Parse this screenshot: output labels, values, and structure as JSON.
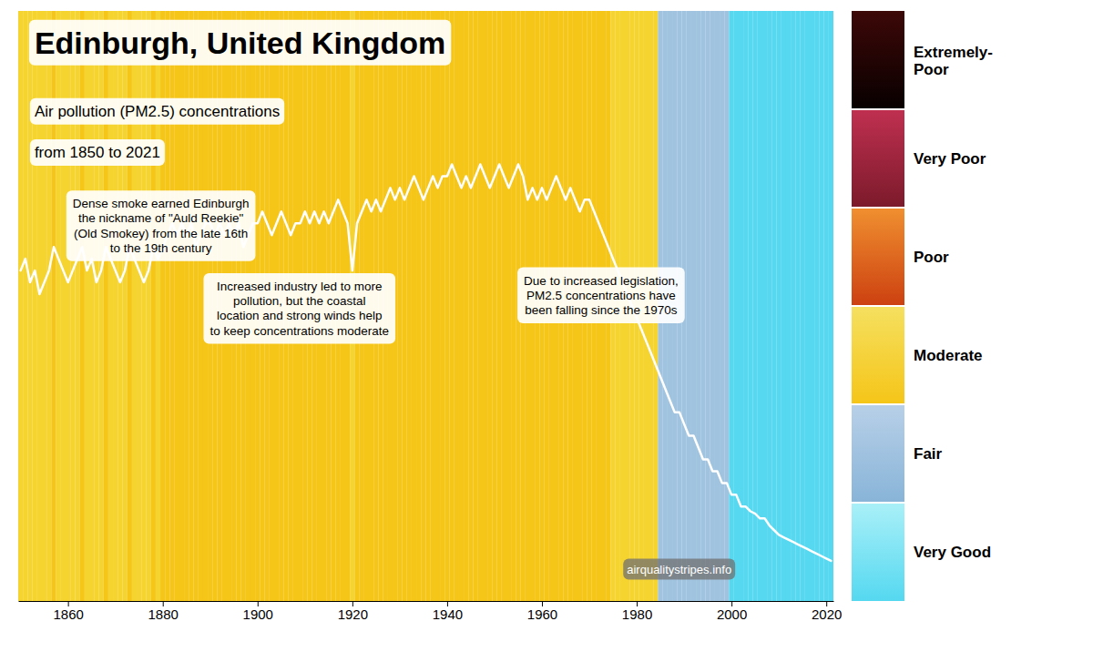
{
  "chart_data": {
    "type": "line",
    "title": "Edinburgh, United Kingdom",
    "subtitle": [
      "Air pollution (PM2.5) concentrations",
      "from 1850 to 2021"
    ],
    "annotations": [
      "Dense smoke earned Edinburgh\nthe nickname of \"Auld Reekie\"\n(Old Smokey) from the late 16th\nto the 19th century",
      "Increased industry led to more\npollution, but the coastal\nlocation and strong winds help\nto keep concentrations moderate",
      "Due to increased legislation,\nPM2.5 concentrations have\nbeen falling since the 1970s"
    ],
    "source": "airqualitystripes.info",
    "x": [
      1850,
      1851,
      1852,
      1853,
      1854,
      1855,
      1856,
      1857,
      1858,
      1859,
      1860,
      1861,
      1862,
      1863,
      1864,
      1865,
      1866,
      1867,
      1868,
      1869,
      1870,
      1871,
      1872,
      1873,
      1874,
      1875,
      1876,
      1877,
      1878,
      1879,
      1880,
      1881,
      1882,
      1883,
      1884,
      1885,
      1886,
      1887,
      1888,
      1889,
      1890,
      1891,
      1892,
      1893,
      1894,
      1895,
      1896,
      1897,
      1898,
      1899,
      1900,
      1901,
      1902,
      1903,
      1904,
      1905,
      1906,
      1907,
      1908,
      1909,
      1910,
      1911,
      1912,
      1913,
      1914,
      1915,
      1916,
      1917,
      1918,
      1919,
      1920,
      1921,
      1922,
      1923,
      1924,
      1925,
      1926,
      1927,
      1928,
      1929,
      1930,
      1931,
      1932,
      1933,
      1934,
      1935,
      1936,
      1937,
      1938,
      1939,
      1940,
      1941,
      1942,
      1943,
      1944,
      1945,
      1946,
      1947,
      1948,
      1949,
      1950,
      1951,
      1952,
      1953,
      1954,
      1955,
      1956,
      1957,
      1958,
      1959,
      1960,
      1961,
      1962,
      1963,
      1964,
      1965,
      1966,
      1967,
      1968,
      1969,
      1970,
      1971,
      1972,
      1973,
      1974,
      1975,
      1976,
      1977,
      1978,
      1979,
      1980,
      1981,
      1982,
      1983,
      1984,
      1985,
      1986,
      1987,
      1988,
      1989,
      1990,
      1991,
      1992,
      1993,
      1994,
      1995,
      1996,
      1997,
      1998,
      1999,
      2000,
      2001,
      2002,
      2003,
      2004,
      2005,
      2006,
      2007,
      2008,
      2009,
      2010,
      2011,
      2012,
      2013,
      2014,
      2015,
      2016,
      2017,
      2018,
      2019,
      2020,
      2021
    ],
    "values": [
      14.0,
      14.5,
      13.5,
      14.0,
      13.0,
      13.5,
      14.0,
      15.0,
      14.5,
      14.0,
      13.5,
      14.0,
      14.5,
      15.0,
      14.0,
      14.5,
      13.5,
      14.0,
      15.0,
      14.5,
      14.0,
      13.5,
      14.0,
      15.0,
      14.5,
      14.0,
      13.5,
      14.0,
      15.0,
      14.5,
      15.0,
      15.5,
      16.0,
      15.5,
      16.0,
      15.5,
      16.0,
      15.0,
      15.5,
      16.0,
      16.0,
      15.5,
      16.0,
      15.5,
      16.0,
      15.5,
      16.0,
      15.0,
      15.5,
      16.0,
      16.0,
      16.5,
      16.0,
      15.5,
      16.0,
      16.5,
      16.0,
      15.5,
      16.0,
      16.0,
      16.5,
      16.0,
      16.5,
      16.0,
      16.5,
      16.0,
      16.5,
      17.0,
      16.5,
      16.0,
      14.0,
      16.0,
      16.5,
      17.0,
      16.5,
      17.0,
      16.5,
      17.0,
      17.5,
      17.0,
      17.5,
      17.0,
      17.5,
      18.0,
      17.5,
      17.0,
      17.5,
      18.0,
      17.5,
      18.0,
      18.0,
      18.5,
      18.0,
      17.5,
      18.0,
      17.5,
      18.0,
      18.5,
      18.0,
      17.5,
      18.0,
      18.5,
      18.0,
      17.5,
      18.0,
      18.5,
      18.0,
      17.0,
      17.5,
      17.0,
      17.5,
      17.0,
      17.5,
      18.0,
      17.5,
      17.0,
      17.5,
      17.0,
      16.5,
      17.0,
      17.0,
      16.5,
      16.0,
      15.5,
      15.0,
      14.5,
      14.0,
      13.5,
      13.0,
      12.5,
      12.0,
      11.5,
      11.0,
      10.5,
      10.0,
      9.5,
      9.0,
      8.5,
      8.0,
      8.0,
      7.5,
      7.0,
      7.0,
      6.5,
      6.0,
      6.0,
      5.5,
      5.5,
      5.0,
      5.0,
      4.5,
      4.5,
      4.0,
      4.0,
      3.8,
      3.7,
      3.5,
      3.5,
      3.2,
      3.0,
      2.8,
      2.7,
      2.6,
      2.5,
      2.4,
      2.3,
      2.2,
      2.1,
      2.0,
      1.9,
      1.8,
      1.7
    ],
    "colors": [
      "#f5d430",
      "#f5d430",
      "#f5d430",
      "#f5d430",
      "#f5d430",
      "#f5d430",
      "#f5d430",
      "#f5c518",
      "#f5d430",
      "#f5d430",
      "#f5d430",
      "#f5d430",
      "#f5d430",
      "#f5c518",
      "#f5d430",
      "#f5d430",
      "#f5d430",
      "#f5d430",
      "#f5c518",
      "#f5d430",
      "#f5d430",
      "#f5d430",
      "#f5d430",
      "#f5c518",
      "#f5d430",
      "#f5d430",
      "#f5d430",
      "#f5d430",
      "#f5c518",
      "#f5d430",
      "#f5c518",
      "#f5c518",
      "#f5c518",
      "#f5c518",
      "#f5c518",
      "#f5c518",
      "#f5c518",
      "#f5c518",
      "#f5c518",
      "#f5c518",
      "#f5c518",
      "#f5c518",
      "#f5c518",
      "#f5c518",
      "#f5c518",
      "#f5c518",
      "#f5c518",
      "#f5c518",
      "#f5c518",
      "#f5c518",
      "#f5c518",
      "#f5c518",
      "#f5c518",
      "#f5c518",
      "#f5c518",
      "#f5c518",
      "#f5c518",
      "#f5c518",
      "#f5c518",
      "#f5c518",
      "#f5c518",
      "#f5c518",
      "#f5c518",
      "#f5c518",
      "#f5c518",
      "#f5c518",
      "#f5c518",
      "#f5c518",
      "#f5c518",
      "#f5c518",
      "#f5d430",
      "#f5c518",
      "#f5c518",
      "#f5c518",
      "#f5c518",
      "#f5c518",
      "#f5c518",
      "#f5c518",
      "#f5c518",
      "#f5c518",
      "#f5c518",
      "#f5c518",
      "#f5c518",
      "#f5c518",
      "#f5c518",
      "#f5c518",
      "#f5c518",
      "#f5c518",
      "#f5c518",
      "#f5c518",
      "#f5c518",
      "#f5c518",
      "#f5c518",
      "#f5c518",
      "#f5c518",
      "#f5c518",
      "#f5c518",
      "#f5c518",
      "#f5c518",
      "#f5c518",
      "#f5c518",
      "#f5c518",
      "#f5c518",
      "#f5c518",
      "#f5c518",
      "#f5c518",
      "#f5c518",
      "#f5c518",
      "#f5c518",
      "#f5c518",
      "#f5c518",
      "#f5c518",
      "#f5c518",
      "#f5c518",
      "#f5c518",
      "#f5c518",
      "#f5c518",
      "#f5c518",
      "#f5c518",
      "#f5c518",
      "#f5c518",
      "#f5c518",
      "#f5c518",
      "#f5c518",
      "#f5c518",
      "#f5d430",
      "#f5d430",
      "#f5d430",
      "#f5d430",
      "#f5d430",
      "#f5d430",
      "#f5d430",
      "#f5d430",
      "#f5d430",
      "#f5d430",
      "#a0c4e0",
      "#a0c4e0",
      "#a0c4e0",
      "#a0c4e0",
      "#a0c4e0",
      "#a0c4e0",
      "#a0c4e0",
      "#a0c4e0",
      "#a0c4e0",
      "#a0c4e0",
      "#a0c4e0",
      "#a0c4e0",
      "#a0c4e0",
      "#a0c4e0",
      "#a0c4e0",
      "#55d8f0",
      "#55d8f0",
      "#55d8f0",
      "#55d8f0",
      "#55d8f0",
      "#55d8f0",
      "#55d8f0",
      "#55d8f0",
      "#55d8f0",
      "#55d8f0",
      "#55d8f0",
      "#55d8f0",
      "#55d8f0",
      "#55d8f0",
      "#55d8f0",
      "#55d8f0",
      "#55d8f0",
      "#55d8f0",
      "#55d8f0",
      "#55d8f0",
      "#55d8f0",
      "#55d8f0"
    ],
    "color": "#ffffff",
    "xlim": [
      1849.5,
      2021.5
    ],
    "xticks": [
      1860,
      1880,
      1900,
      1920,
      1940,
      1960,
      1980,
      2000,
      2020
    ],
    "ylim": [
      0,
      25
    ],
    "tick_labels": "x",
    "legend_items": [
      {
        "label": "Extremely-\nPoor",
        "colors": [
          "#080000",
          "#3d0808"
        ]
      },
      {
        "label": "Very Poor",
        "colors": [
          "#7b1a2a",
          "#c03050"
        ]
      },
      {
        "label": "Poor",
        "colors": [
          "#cc4010",
          "#f09030"
        ]
      },
      {
        "label": "Moderate",
        "colors": [
          "#f5c518",
          "#f5e060"
        ]
      },
      {
        "label": "Fair",
        "colors": [
          "#88b4d8",
          "#b8d0e8"
        ]
      },
      {
        "label": "Very Good",
        "colors": [
          "#55d8f0",
          "#aaf0f8"
        ]
      }
    ]
  }
}
